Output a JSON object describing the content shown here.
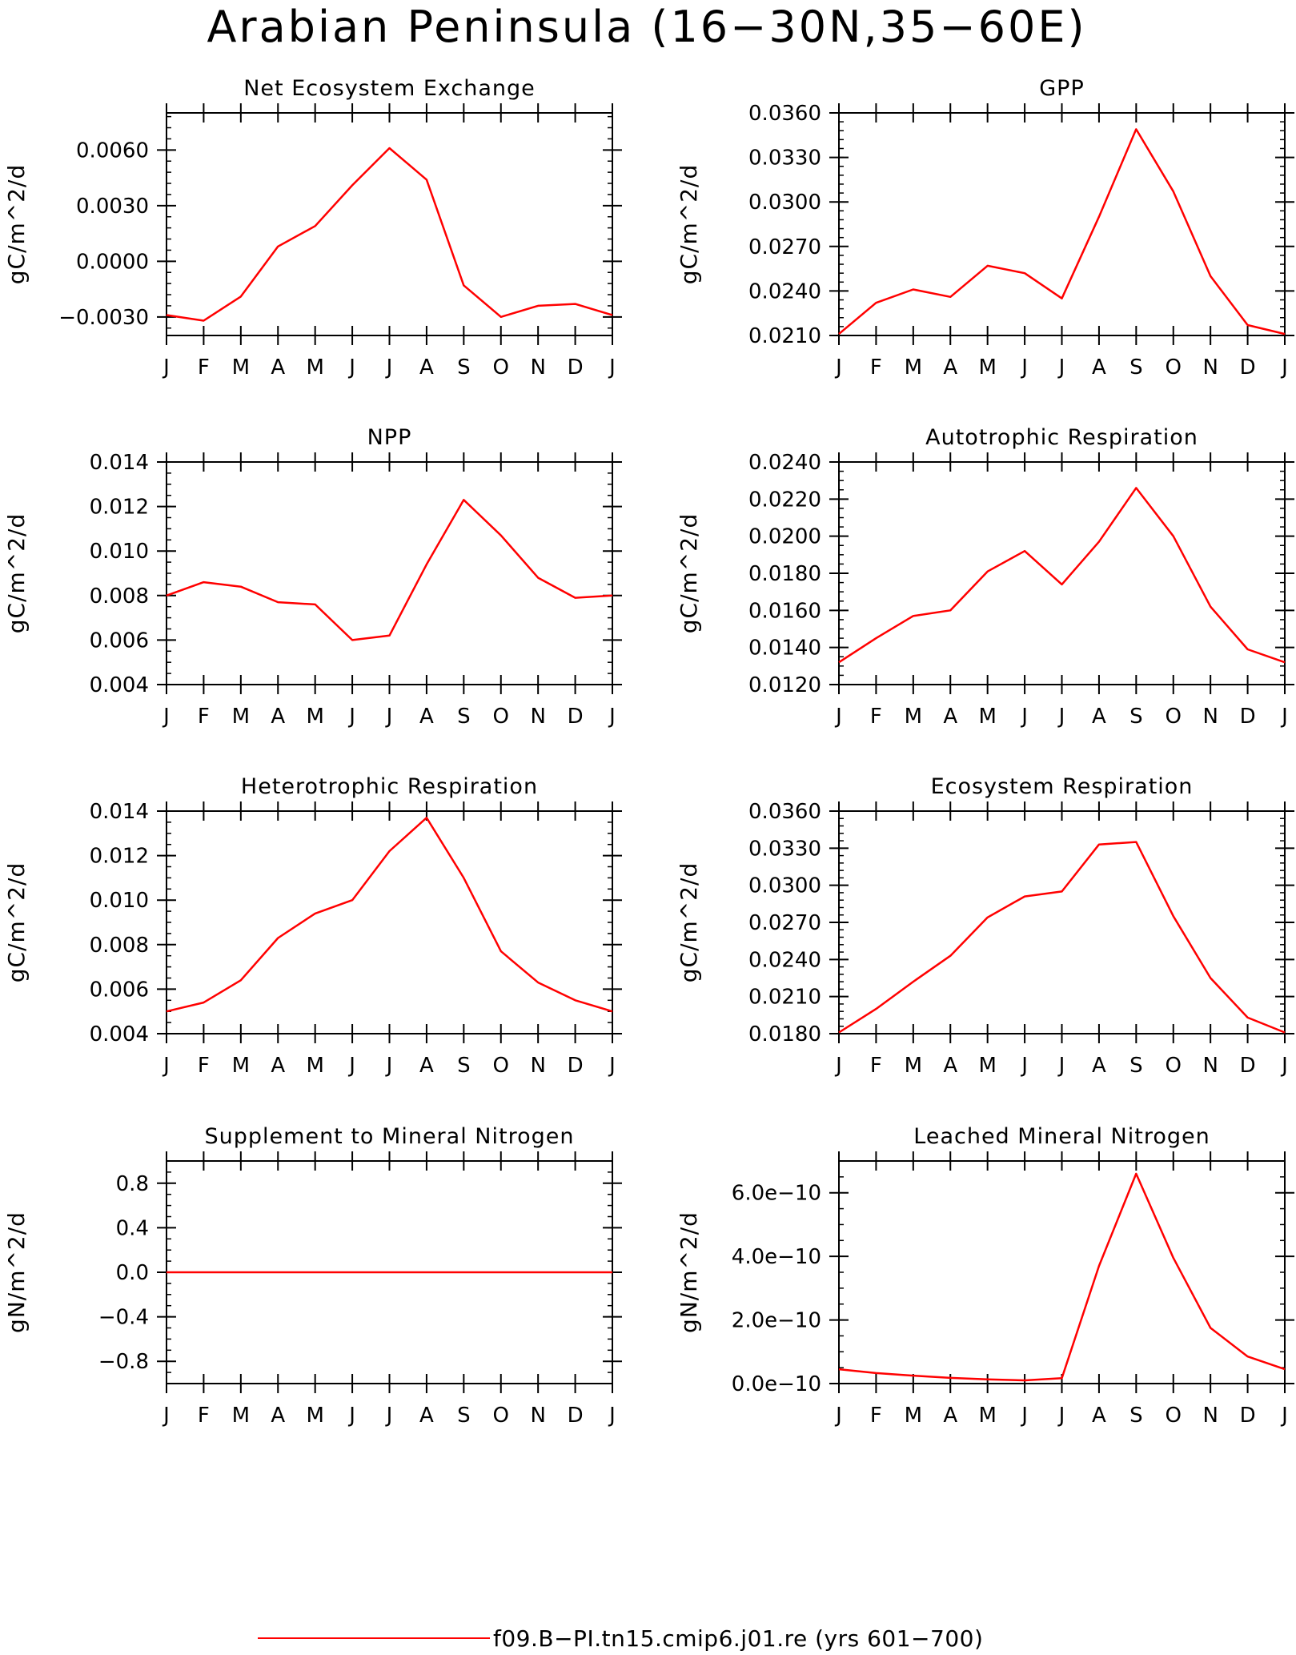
{
  "title": "Arabian Peninsula (16−30N,35−60E)",
  "legend": {
    "label": "f09.B−PI.tn15.cmip6.j01.re (yrs 601−700)",
    "color": "#ff0000"
  },
  "series_color": "#ff0000",
  "chart_data": [
    {
      "type": "line",
      "title": "Net Ecosystem Exchange",
      "ylabel": "gC/m^2/d",
      "categories": [
        "J",
        "F",
        "M",
        "A",
        "M",
        "J",
        "J",
        "A",
        "S",
        "O",
        "N",
        "D",
        "J"
      ],
      "values": [
        -0.0029,
        -0.0032,
        -0.0019,
        0.0008,
        0.0019,
        0.0041,
        0.0061,
        0.0044,
        -0.0013,
        -0.003,
        -0.0024,
        -0.0023,
        -0.0029
      ],
      "ylim": [
        -0.004,
        0.008
      ],
      "yticks": [
        -0.003,
        0.0,
        0.003,
        0.006
      ],
      "yticklabels": [
        "−0.0030",
        "0.0000",
        "0.0030",
        "0.0060"
      ],
      "yminor": 0.0006
    },
    {
      "type": "line",
      "title": "GPP",
      "ylabel": "gC/m^2/d",
      "categories": [
        "J",
        "F",
        "M",
        "A",
        "M",
        "J",
        "J",
        "A",
        "S",
        "O",
        "N",
        "D",
        "J"
      ],
      "values": [
        0.0211,
        0.0232,
        0.0241,
        0.0236,
        0.0257,
        0.0252,
        0.0235,
        0.029,
        0.0349,
        0.0307,
        0.025,
        0.0217,
        0.0211
      ],
      "ylim": [
        0.021,
        0.036
      ],
      "yticks": [
        0.021,
        0.024,
        0.027,
        0.03,
        0.033,
        0.036
      ],
      "yticklabels": [
        "0.0210",
        "0.0240",
        "0.0270",
        "0.0300",
        "0.0330",
        "0.0360"
      ],
      "yminor": 0.0006
    },
    {
      "type": "line",
      "title": "NPP",
      "ylabel": "gC/m^2/d",
      "categories": [
        "J",
        "F",
        "M",
        "A",
        "M",
        "J",
        "J",
        "A",
        "S",
        "O",
        "N",
        "D",
        "J"
      ],
      "values": [
        0.008,
        0.0086,
        0.0084,
        0.0077,
        0.0076,
        0.006,
        0.0062,
        0.0094,
        0.0123,
        0.0107,
        0.0088,
        0.0079,
        0.008
      ],
      "ylim": [
        0.004,
        0.014
      ],
      "yticks": [
        0.004,
        0.006,
        0.008,
        0.01,
        0.012,
        0.014
      ],
      "yticklabels": [
        "0.004",
        "0.006",
        "0.008",
        "0.010",
        "0.012",
        "0.014"
      ],
      "yminor": 0.0005
    },
    {
      "type": "line",
      "title": "Autotrophic Respiration",
      "ylabel": "gC/m^2/d",
      "categories": [
        "J",
        "F",
        "M",
        "A",
        "M",
        "J",
        "J",
        "A",
        "S",
        "O",
        "N",
        "D",
        "J"
      ],
      "values": [
        0.0132,
        0.0145,
        0.0157,
        0.016,
        0.0181,
        0.0192,
        0.0174,
        0.0197,
        0.0226,
        0.02,
        0.0162,
        0.0139,
        0.0132
      ],
      "ylim": [
        0.012,
        0.024
      ],
      "yticks": [
        0.012,
        0.014,
        0.016,
        0.018,
        0.02,
        0.022,
        0.024
      ],
      "yticklabels": [
        "0.0120",
        "0.0140",
        "0.0160",
        "0.0180",
        "0.0200",
        "0.0220",
        "0.0240"
      ],
      "yminor": 0.0005
    },
    {
      "type": "line",
      "title": "Heterotrophic Respiration",
      "ylabel": "gC/m^2/d",
      "categories": [
        "J",
        "F",
        "M",
        "A",
        "M",
        "J",
        "J",
        "A",
        "S",
        "O",
        "N",
        "D",
        "J"
      ],
      "values": [
        0.005,
        0.0054,
        0.0064,
        0.0083,
        0.0094,
        0.01,
        0.0122,
        0.0137,
        0.011,
        0.0077,
        0.0063,
        0.0055,
        0.005
      ],
      "ylim": [
        0.004,
        0.014
      ],
      "yticks": [
        0.004,
        0.006,
        0.008,
        0.01,
        0.012,
        0.014
      ],
      "yticklabels": [
        "0.004",
        "0.006",
        "0.008",
        "0.010",
        "0.012",
        "0.014"
      ],
      "yminor": 0.0005
    },
    {
      "type": "line",
      "title": "Ecosystem Respiration",
      "ylabel": "gC/m^2/d",
      "categories": [
        "J",
        "F",
        "M",
        "A",
        "M",
        "J",
        "J",
        "A",
        "S",
        "O",
        "N",
        "D",
        "J"
      ],
      "values": [
        0.0181,
        0.02,
        0.0222,
        0.0243,
        0.0274,
        0.0291,
        0.0295,
        0.0333,
        0.0335,
        0.0275,
        0.0225,
        0.0193,
        0.0181
      ],
      "ylim": [
        0.018,
        0.036
      ],
      "yticks": [
        0.018,
        0.021,
        0.024,
        0.027,
        0.03,
        0.033,
        0.036
      ],
      "yticklabels": [
        "0.0180",
        "0.0210",
        "0.0240",
        "0.0270",
        "0.0300",
        "0.0330",
        "0.0360"
      ],
      "yminor": 0.0006
    },
    {
      "type": "line",
      "title": "Supplement to Mineral Nitrogen",
      "ylabel": "gN/m^2/d",
      "categories": [
        "J",
        "F",
        "M",
        "A",
        "M",
        "J",
        "J",
        "A",
        "S",
        "O",
        "N",
        "D",
        "J"
      ],
      "values": [
        0,
        0,
        0,
        0,
        0,
        0,
        0,
        0,
        0,
        0,
        0,
        0,
        0
      ],
      "ylim": [
        -1.0,
        1.0
      ],
      "yticks": [
        -0.8,
        -0.4,
        0.0,
        0.4,
        0.8
      ],
      "yticklabels": [
        "−0.8",
        "−0.4",
        "0.0",
        "0.4",
        "0.8"
      ],
      "yminor": 0.1
    },
    {
      "type": "line",
      "title": "Leached Mineral Nitrogen",
      "ylabel": "gN/m^2/d",
      "categories": [
        "J",
        "F",
        "M",
        "A",
        "M",
        "J",
        "J",
        "A",
        "S",
        "O",
        "N",
        "D",
        "J"
      ],
      "values": [
        4.5e-11,
        3.3e-11,
        2.5e-11,
        1.8e-11,
        1.3e-11,
        1e-11,
        1.7e-11,
        3.7e-10,
        6.6e-10,
        3.95e-10,
        1.75e-10,
        8.5e-11,
        4.5e-11
      ],
      "ylim": [
        0,
        7e-10
      ],
      "yticks": [
        0,
        2e-10,
        4e-10,
        6e-10
      ],
      "yticklabels": [
        "0.0e−10",
        "2.0e−10",
        "4.0e−10",
        "6.0e−10"
      ],
      "yminor": 5e-11
    }
  ]
}
